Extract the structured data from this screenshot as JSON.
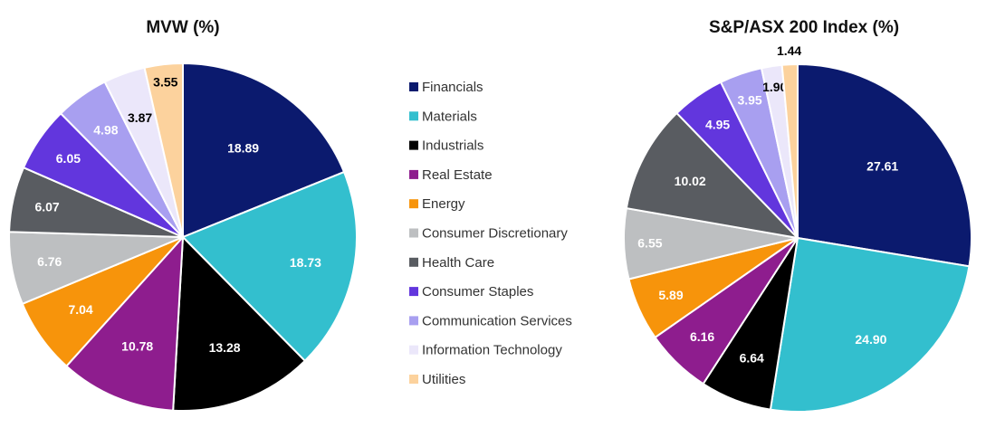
{
  "chart_data": [
    {
      "type": "pie",
      "title": "MVW (%)",
      "categories": [
        "Financials",
        "Materials",
        "Industrials",
        "Real Estate",
        "Energy",
        "Consumer Discretionary",
        "Health Care",
        "Consumer Staples",
        "Communication Services",
        "Information Technology",
        "Utilities"
      ],
      "values": [
        18.89,
        18.73,
        13.28,
        10.78,
        7.04,
        6.76,
        6.07,
        6.05,
        4.98,
        3.87,
        3.55
      ],
      "labels": [
        "18.89",
        "18.73",
        "13.28",
        "10.78",
        "7.04",
        "6.76",
        "6.07",
        "6.05",
        "4.98",
        "3.87",
        "3.55"
      ],
      "start": "12 o'clock",
      "direction": "clockwise"
    },
    {
      "type": "pie",
      "title": "S&P/ASX 200 Index (%)",
      "categories": [
        "Financials",
        "Materials",
        "Industrials",
        "Real Estate",
        "Energy",
        "Consumer Discretionary",
        "Health Care",
        "Consumer Staples",
        "Communication Services",
        "Information Technology",
        "Utilities"
      ],
      "values": [
        27.61,
        24.9,
        6.64,
        6.16,
        5.89,
        6.55,
        10.02,
        4.95,
        3.95,
        1.9,
        1.44
      ],
      "labels": [
        "27.61",
        "24.90",
        "6.64",
        "6.16",
        "5.89",
        "6.55",
        "10.02",
        "4.95",
        "3.95",
        "1.90",
        "1.44"
      ],
      "start": "12 o'clock",
      "direction": "clockwise"
    }
  ],
  "legend": {
    "placement": "center",
    "items": [
      "Financials",
      "Materials",
      "Industrials",
      "Real Estate",
      "Energy",
      "Consumer Discretionary",
      "Health Care",
      "Consumer Staples",
      "Communication Services",
      "Information Technology",
      "Utilities"
    ]
  },
  "colors": {
    "Financials": "#0b1a6e",
    "Materials": "#33bfce",
    "Industrials": "#000000",
    "Real Estate": "#8e1d8e",
    "Energy": "#f7940b",
    "Consumer Discretionary": "#bdbfc1",
    "Health Care": "#595c61",
    "Consumer Staples": "#6236dd",
    "Communication Services": "#a89ff0",
    "Information Technology": "#ebe7fa",
    "Utilities": "#fcd29d"
  },
  "label_colors": {
    "light": "#ffffff",
    "dark": "#000000"
  }
}
